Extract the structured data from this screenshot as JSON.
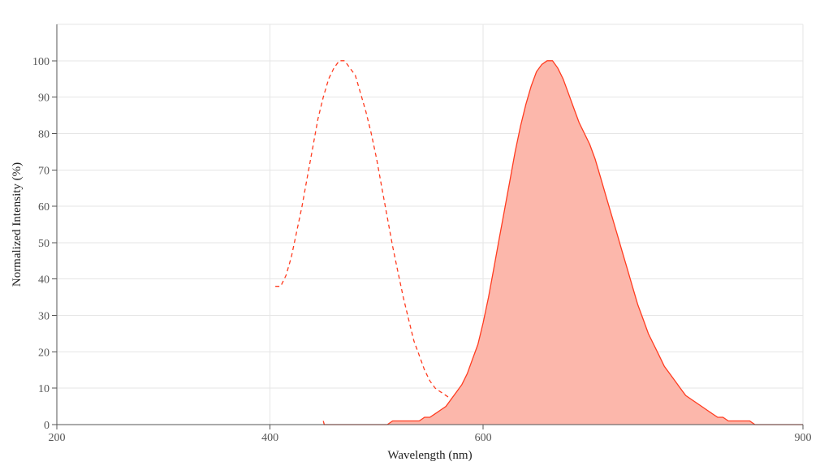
{
  "chart_data": {
    "type": "area",
    "title": "",
    "xlabel": "Wavelength (nm)",
    "ylabel": "Normalized Intensity (%)",
    "xlim": [
      200,
      900
    ],
    "ylim": [
      0,
      110
    ],
    "x_ticks": [
      200,
      400,
      600,
      900
    ],
    "y_ticks": [
      0,
      10,
      20,
      30,
      40,
      50,
      60,
      70,
      80,
      90,
      100
    ],
    "grid": true,
    "legend": "none",
    "series": [
      {
        "style": "dashed-line",
        "color": "#ff3b1f",
        "points": [
          [
            405,
            38
          ],
          [
            410,
            38
          ],
          [
            415,
            41
          ],
          [
            420,
            46
          ],
          [
            425,
            53
          ],
          [
            430,
            60
          ],
          [
            435,
            68
          ],
          [
            440,
            76
          ],
          [
            445,
            84
          ],
          [
            450,
            90
          ],
          [
            455,
            95
          ],
          [
            460,
            98
          ],
          [
            465,
            100
          ],
          [
            470,
            100
          ],
          [
            475,
            98
          ],
          [
            480,
            96
          ],
          [
            485,
            91
          ],
          [
            490,
            86
          ],
          [
            495,
            80
          ],
          [
            500,
            73
          ],
          [
            505,
            65
          ],
          [
            510,
            57
          ],
          [
            515,
            49
          ],
          [
            520,
            42
          ],
          [
            525,
            35
          ],
          [
            530,
            29
          ],
          [
            535,
            23
          ],
          [
            540,
            19
          ],
          [
            545,
            15
          ],
          [
            550,
            12
          ],
          [
            555,
            10
          ],
          [
            560,
            9
          ],
          [
            565,
            8
          ],
          [
            570,
            7
          ],
          [
            575,
            6
          ],
          [
            580,
            5
          ],
          [
            590,
            5
          ],
          [
            600,
            5
          ]
        ]
      },
      {
        "style": "filled-area",
        "color": "#ff3b1f",
        "fill": "#fcb7ab",
        "points": [
          [
            450,
            1
          ],
          [
            451,
            0
          ],
          [
            460,
            0
          ],
          [
            470,
            0
          ],
          [
            480,
            0
          ],
          [
            490,
            0
          ],
          [
            500,
            0
          ],
          [
            510,
            0
          ],
          [
            515,
            1
          ],
          [
            520,
            1
          ],
          [
            530,
            1
          ],
          [
            540,
            1
          ],
          [
            545,
            2
          ],
          [
            550,
            2
          ],
          [
            555,
            3
          ],
          [
            560,
            4
          ],
          [
            565,
            5
          ],
          [
            570,
            7
          ],
          [
            575,
            9
          ],
          [
            580,
            11
          ],
          [
            585,
            14
          ],
          [
            590,
            18
          ],
          [
            595,
            22
          ],
          [
            600,
            28
          ],
          [
            605,
            35
          ],
          [
            610,
            43
          ],
          [
            615,
            51
          ],
          [
            620,
            59
          ],
          [
            625,
            67
          ],
          [
            630,
            75
          ],
          [
            635,
            82
          ],
          [
            640,
            88
          ],
          [
            645,
            93
          ],
          [
            650,
            97
          ],
          [
            655,
            99
          ],
          [
            660,
            100
          ],
          [
            665,
            100
          ],
          [
            670,
            98
          ],
          [
            675,
            95
          ],
          [
            680,
            91
          ],
          [
            685,
            87
          ],
          [
            690,
            83
          ],
          [
            695,
            80
          ],
          [
            700,
            77
          ],
          [
            705,
            73
          ],
          [
            710,
            68
          ],
          [
            715,
            63
          ],
          [
            720,
            58
          ],
          [
            725,
            53
          ],
          [
            730,
            48
          ],
          [
            735,
            43
          ],
          [
            740,
            38
          ],
          [
            745,
            33
          ],
          [
            750,
            29
          ],
          [
            755,
            25
          ],
          [
            760,
            22
          ],
          [
            765,
            19
          ],
          [
            770,
            16
          ],
          [
            775,
            14
          ],
          [
            780,
            12
          ],
          [
            785,
            10
          ],
          [
            790,
            8
          ],
          [
            795,
            7
          ],
          [
            800,
            6
          ],
          [
            805,
            5
          ],
          [
            810,
            4
          ],
          [
            815,
            3
          ],
          [
            820,
            2
          ],
          [
            825,
            2
          ],
          [
            830,
            1
          ],
          [
            840,
            1
          ],
          [
            850,
            1
          ],
          [
            855,
            0
          ],
          [
            870,
            0
          ],
          [
            880,
            0
          ],
          [
            890,
            0
          ],
          [
            900,
            0
          ]
        ]
      }
    ]
  }
}
